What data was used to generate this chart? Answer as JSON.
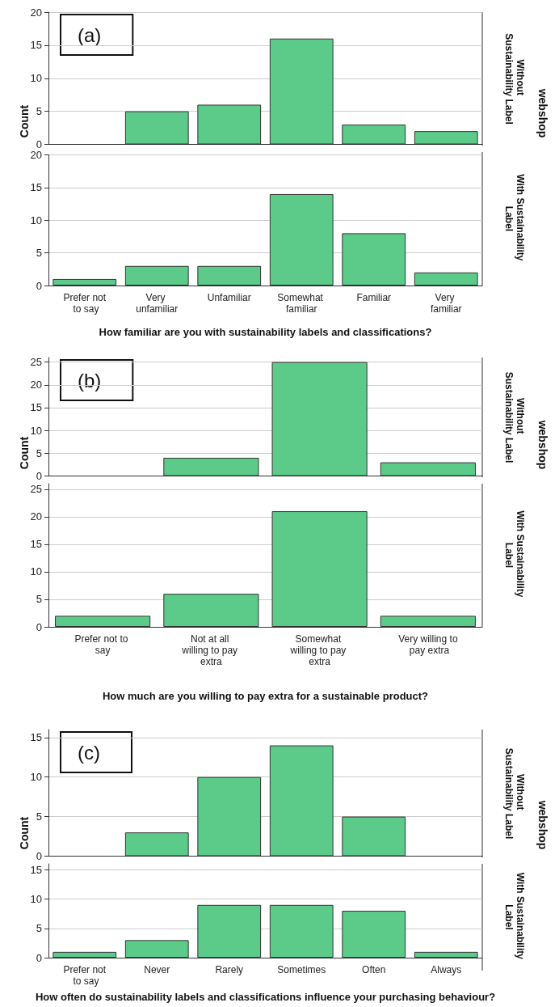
{
  "chart_data": [
    {
      "type": "bar",
      "ylabel": "Count",
      "y2label": "webshop",
      "annotations": [
        "(a)",
        "Without Sustainability Label"
      ],
      "categories": [
        "Prefer not to say",
        "Very unfamiliar",
        "Unfamiliar",
        "Somewhat familiar",
        "Familiar",
        "Very familiar"
      ],
      "values": [
        0,
        5,
        6,
        16,
        3,
        2
      ],
      "color": "#5ccb8a",
      "ylim": [
        0,
        20
      ],
      "yticks": [
        0,
        5,
        10,
        15,
        20
      ],
      "grid": "y",
      "tick_labels": "y"
    },
    {
      "type": "bar",
      "xlabel": "How familiar are you with sustainability labels and classifications?",
      "annotations": [
        "With Sustainability Label"
      ],
      "categories": [
        "Prefer not to say",
        "Very unfamiliar",
        "Unfamiliar",
        "Somewhat familiar",
        "Familiar",
        "Very familiar"
      ],
      "values": [
        1,
        3,
        3,
        14,
        8,
        2
      ],
      "color": "#5ccb8a",
      "ylim": [
        0,
        20
      ],
      "yticks": [
        0,
        5,
        10,
        15,
        20
      ],
      "grid": "y"
    },
    {
      "type": "bar",
      "ylabel": "Count",
      "y2label": "webshop",
      "annotations": [
        "(b)",
        "Without Sustainability Label"
      ],
      "categories": [
        "Prefer not to say",
        "Not at all willing to pay extra",
        "Somewhat willing to pay extra",
        "Very willing to pay extra"
      ],
      "values": [
        0,
        4,
        25,
        3
      ],
      "color": "#5ccb8a",
      "ylim": [
        0,
        26
      ],
      "yticks": [
        0,
        5,
        10,
        15,
        20,
        25
      ],
      "grid": "y",
      "tick_labels": "y"
    },
    {
      "type": "bar",
      "xlabel": "How much are you willing to pay extra for a sustainable product?",
      "annotations": [
        "With Sustainability Label"
      ],
      "categories": [
        "Prefer not to say",
        "Not at all willing to pay extra",
        "Somewhat willing to pay extra",
        "Very willing to pay extra"
      ],
      "values": [
        2,
        6,
        21,
        2
      ],
      "color": "#5ccb8a",
      "ylim": [
        0,
        26
      ],
      "yticks": [
        0,
        5,
        10,
        15,
        20,
        25
      ],
      "grid": "y"
    },
    {
      "type": "bar",
      "ylabel": "Count",
      "y2label": "webshop",
      "annotations": [
        "(c)",
        "Without Sustainability Label"
      ],
      "categories": [
        "Prefer not to say",
        "Never",
        "Rarely",
        "Sometimes",
        "Often",
        "Always"
      ],
      "values": [
        0,
        3,
        10,
        14,
        5,
        0
      ],
      "color": "#5ccb8a",
      "ylim": [
        0,
        16
      ],
      "yticks": [
        0,
        5,
        10,
        15
      ],
      "grid": "y",
      "tick_labels": "y"
    },
    {
      "type": "bar",
      "xlabel": "How often do sustainability labels and classifications influence your purchasing behaviour?",
      "annotations": [
        "With Sustainability Label"
      ],
      "categories": [
        "Prefer not to say",
        "Never",
        "Rarely",
        "Sometimes",
        "Often",
        "Always"
      ],
      "values": [
        1,
        3,
        9,
        9,
        8,
        1
      ],
      "color": "#5ccb8a",
      "ylim": [
        0,
        16
      ],
      "yticks": [
        0,
        5,
        10,
        15
      ],
      "grid": "y"
    }
  ]
}
